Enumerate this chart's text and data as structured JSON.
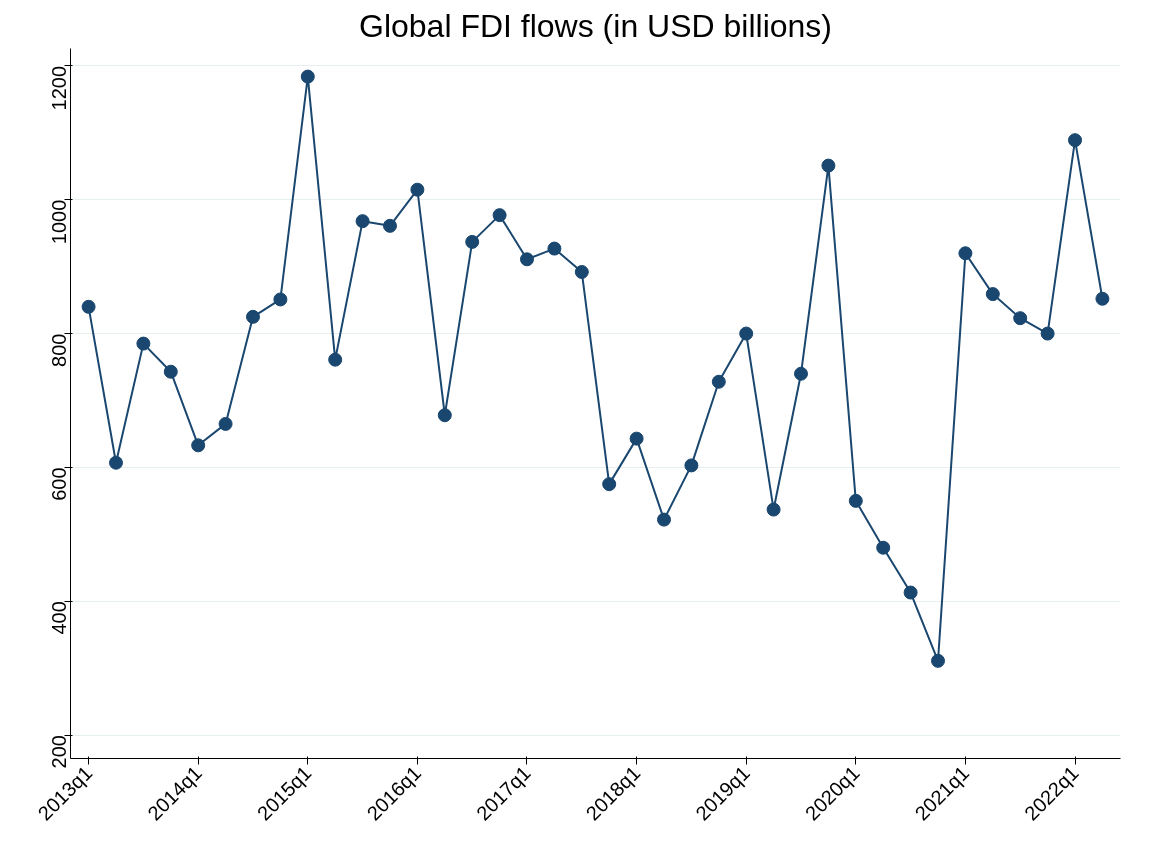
{
  "chart_data": {
    "type": "line",
    "title": "Global FDI flows (in USD billions)",
    "categories": [
      "2013q1",
      null,
      null,
      null,
      "2014q1",
      null,
      null,
      null,
      "2015q1",
      null,
      null,
      null,
      "2016q1",
      null,
      null,
      null,
      "2017q1",
      null,
      null,
      null,
      "2018q1",
      null,
      null,
      null,
      "2019q1",
      null,
      null,
      null,
      "2020q1",
      null,
      null,
      null,
      "2021q1",
      null,
      null,
      null,
      "2022q1",
      null
    ],
    "series": [
      {
        "color": "#1a476f",
        "values": [
          840,
          607,
          785,
          743,
          633,
          665,
          825,
          851,
          1184,
          761,
          968,
          961,
          1015,
          678,
          937,
          977,
          911,
          927,
          892,
          575,
          643,
          522,
          603,
          728,
          800,
          537,
          740,
          1051,
          550,
          480,
          413,
          311,
          920,
          859,
          823,
          800,
          1089,
          852
        ]
      }
    ],
    "ylim": [
      165,
      1226
    ],
    "yticks": [
      200,
      400,
      600,
      800,
      1000,
      1200
    ],
    "grid": "y",
    "marker": "circle",
    "line_style": "solid"
  }
}
